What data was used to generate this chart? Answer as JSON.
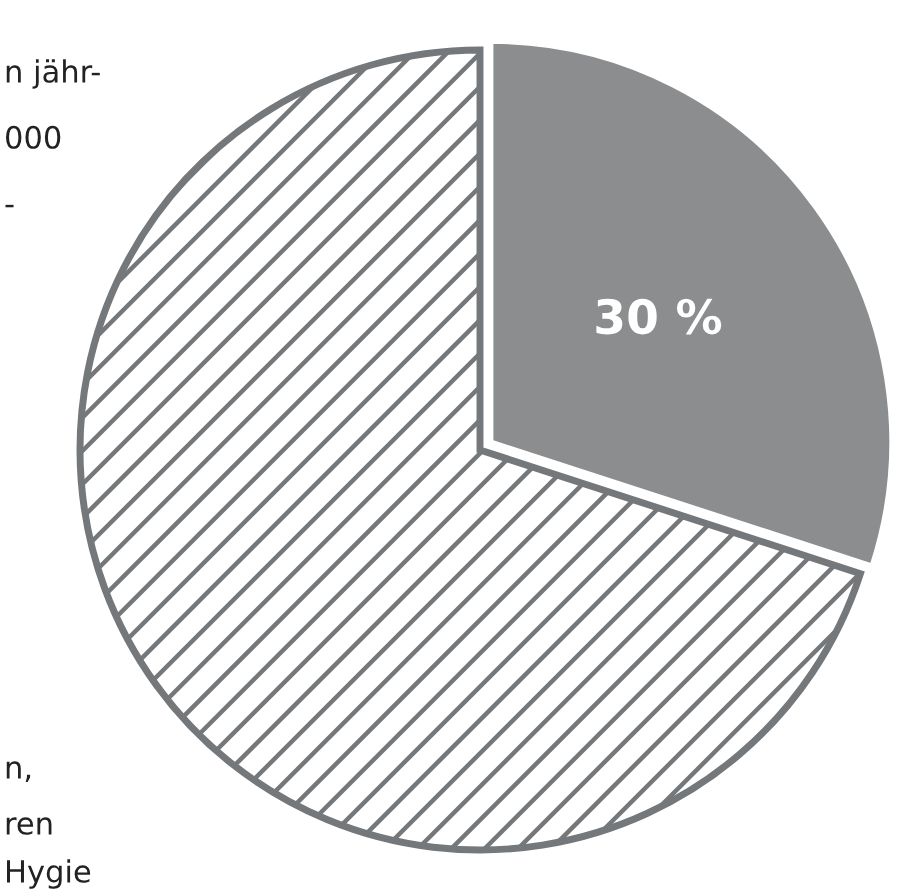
{
  "chart_data": {
    "type": "pie",
    "categories": [
      null,
      null
    ],
    "values": [
      30,
      70
    ],
    "colors": [
      "#8b8d8f",
      "#75787b"
    ],
    "value_labels": [
      "30 %",
      null
    ],
    "annotations": [
      "n jähr-",
      "000",
      "-",
      "n,",
      "ren",
      "Hygie"
    ]
  }
}
